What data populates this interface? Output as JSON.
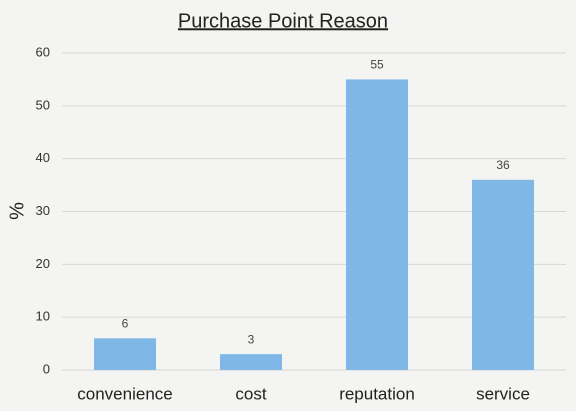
{
  "chart_data": {
    "type": "bar",
    "title": "Purchase Point Reason",
    "y_label": "%",
    "categories": [
      "convenience",
      "cost",
      "reputation",
      "service"
    ],
    "values": [
      6,
      3,
      55,
      36
    ],
    "color": "#7fb8e6",
    "ylim": [
      0,
      60
    ],
    "yticks": [
      0,
      10,
      20,
      30,
      40,
      50,
      60
    ],
    "grid": true,
    "data_labels": true
  }
}
